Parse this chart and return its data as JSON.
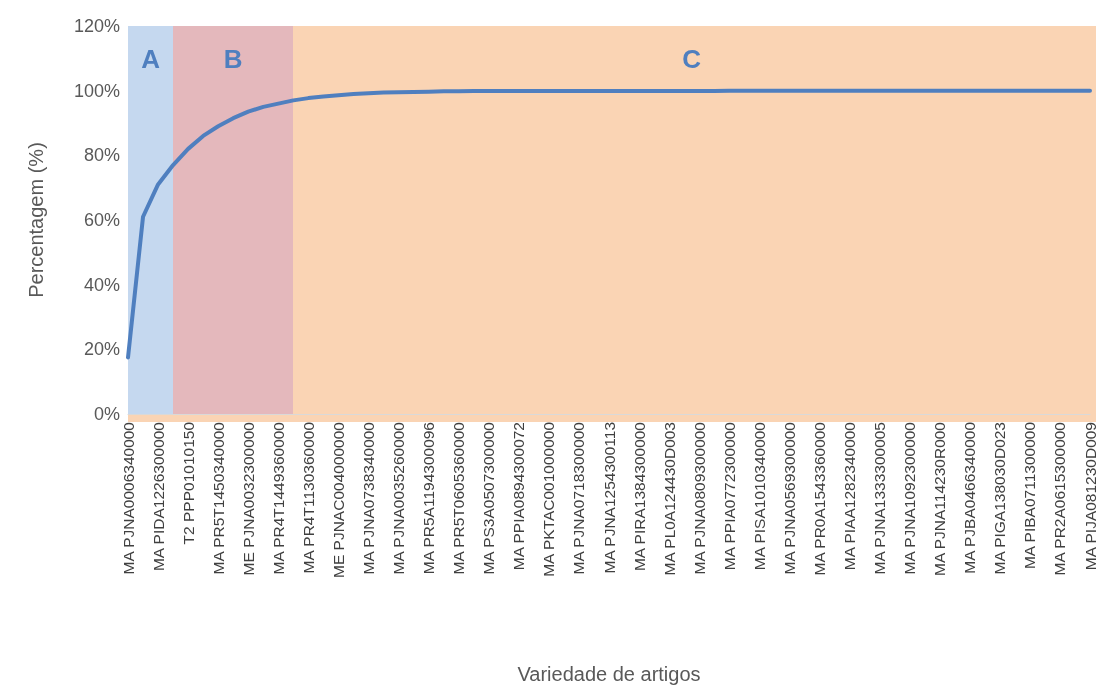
{
  "chart_data": {
    "type": "line",
    "xlabel": "Variedade de artigos",
    "ylabel": "Percentagem (%)",
    "categories": [
      "MA PJNA0006340000",
      null,
      "MA PIDA1226300000",
      null,
      "T2 PPP01010150",
      null,
      "MA PR5T1450340000",
      null,
      "ME PJNA0032300000",
      null,
      "MA PR4T1449360000",
      null,
      "MA PR4T1130360000",
      null,
      "ME PJNAC004000000",
      null,
      "MA PJNA0738340000",
      null,
      "MA PJNA0035260000",
      null,
      "MA PR5A1194300096",
      null,
      "MA PR5T0605360000",
      null,
      "MA PS3A0507300000",
      null,
      "MA PPIA0894300072",
      null,
      "MA PKTAC001000000",
      null,
      "MA PJNA0718300000",
      null,
      "MA PJNA1254300113",
      null,
      "MA PIRA1384300000",
      null,
      "MA PL0A124430D003",
      null,
      "MA PJNA0809300000",
      null,
      "MA PPIA0772300000",
      null,
      "MA PISA1010340000",
      null,
      "MA PJNA0569300000",
      null,
      "MA PR0A1543360000",
      null,
      "MA PIAA1282340000",
      null,
      "MA PJNA1333300005",
      null,
      "MA PJNA1092300000",
      null,
      "MA PJNA114230R000",
      null,
      "MA PJBA0466340000",
      null,
      "MA PIGA138030D023",
      null,
      "MA PIBA0711300000",
      null,
      "MA PR2A0615300000",
      null,
      "MA PIJA081230D009"
    ],
    "series": [
      {
        "color": "#4f7fbf",
        "values": [
          17.5,
          61,
          71,
          77,
          82,
          86,
          89,
          91.5,
          93.5,
          95,
          96,
          97,
          97.7,
          98.2,
          98.6,
          99,
          99.2,
          99.4,
          99.5,
          99.6,
          99.7,
          99.8,
          99.8,
          99.9,
          99.9,
          99.9,
          99.9,
          99.9,
          99.9,
          99.9,
          99.9,
          99.9,
          99.9,
          99.9,
          99.9,
          99.9,
          99.9,
          99.9,
          99.9,
          99.9,
          100,
          100,
          100,
          100,
          100,
          100,
          100,
          100,
          100,
          100,
          100,
          100,
          100,
          100,
          100,
          100,
          100,
          100,
          100,
          100,
          100,
          100,
          100,
          100,
          100
        ]
      }
    ],
    "ylim": [
      0,
      120
    ],
    "yticks": [
      {
        "value": 0,
        "label": "0%"
      },
      {
        "value": 20,
        "label": "20%"
      },
      {
        "value": 40,
        "label": "40%"
      },
      {
        "value": 60,
        "label": "60%"
      },
      {
        "value": 80,
        "label": "80%"
      },
      {
        "value": 100,
        "label": "100%"
      },
      {
        "value": 120,
        "label": "120%"
      }
    ],
    "annotations": [
      "A",
      "B",
      "C"
    ],
    "grid": false,
    "marker": "none",
    "line_style": "solid"
  }
}
